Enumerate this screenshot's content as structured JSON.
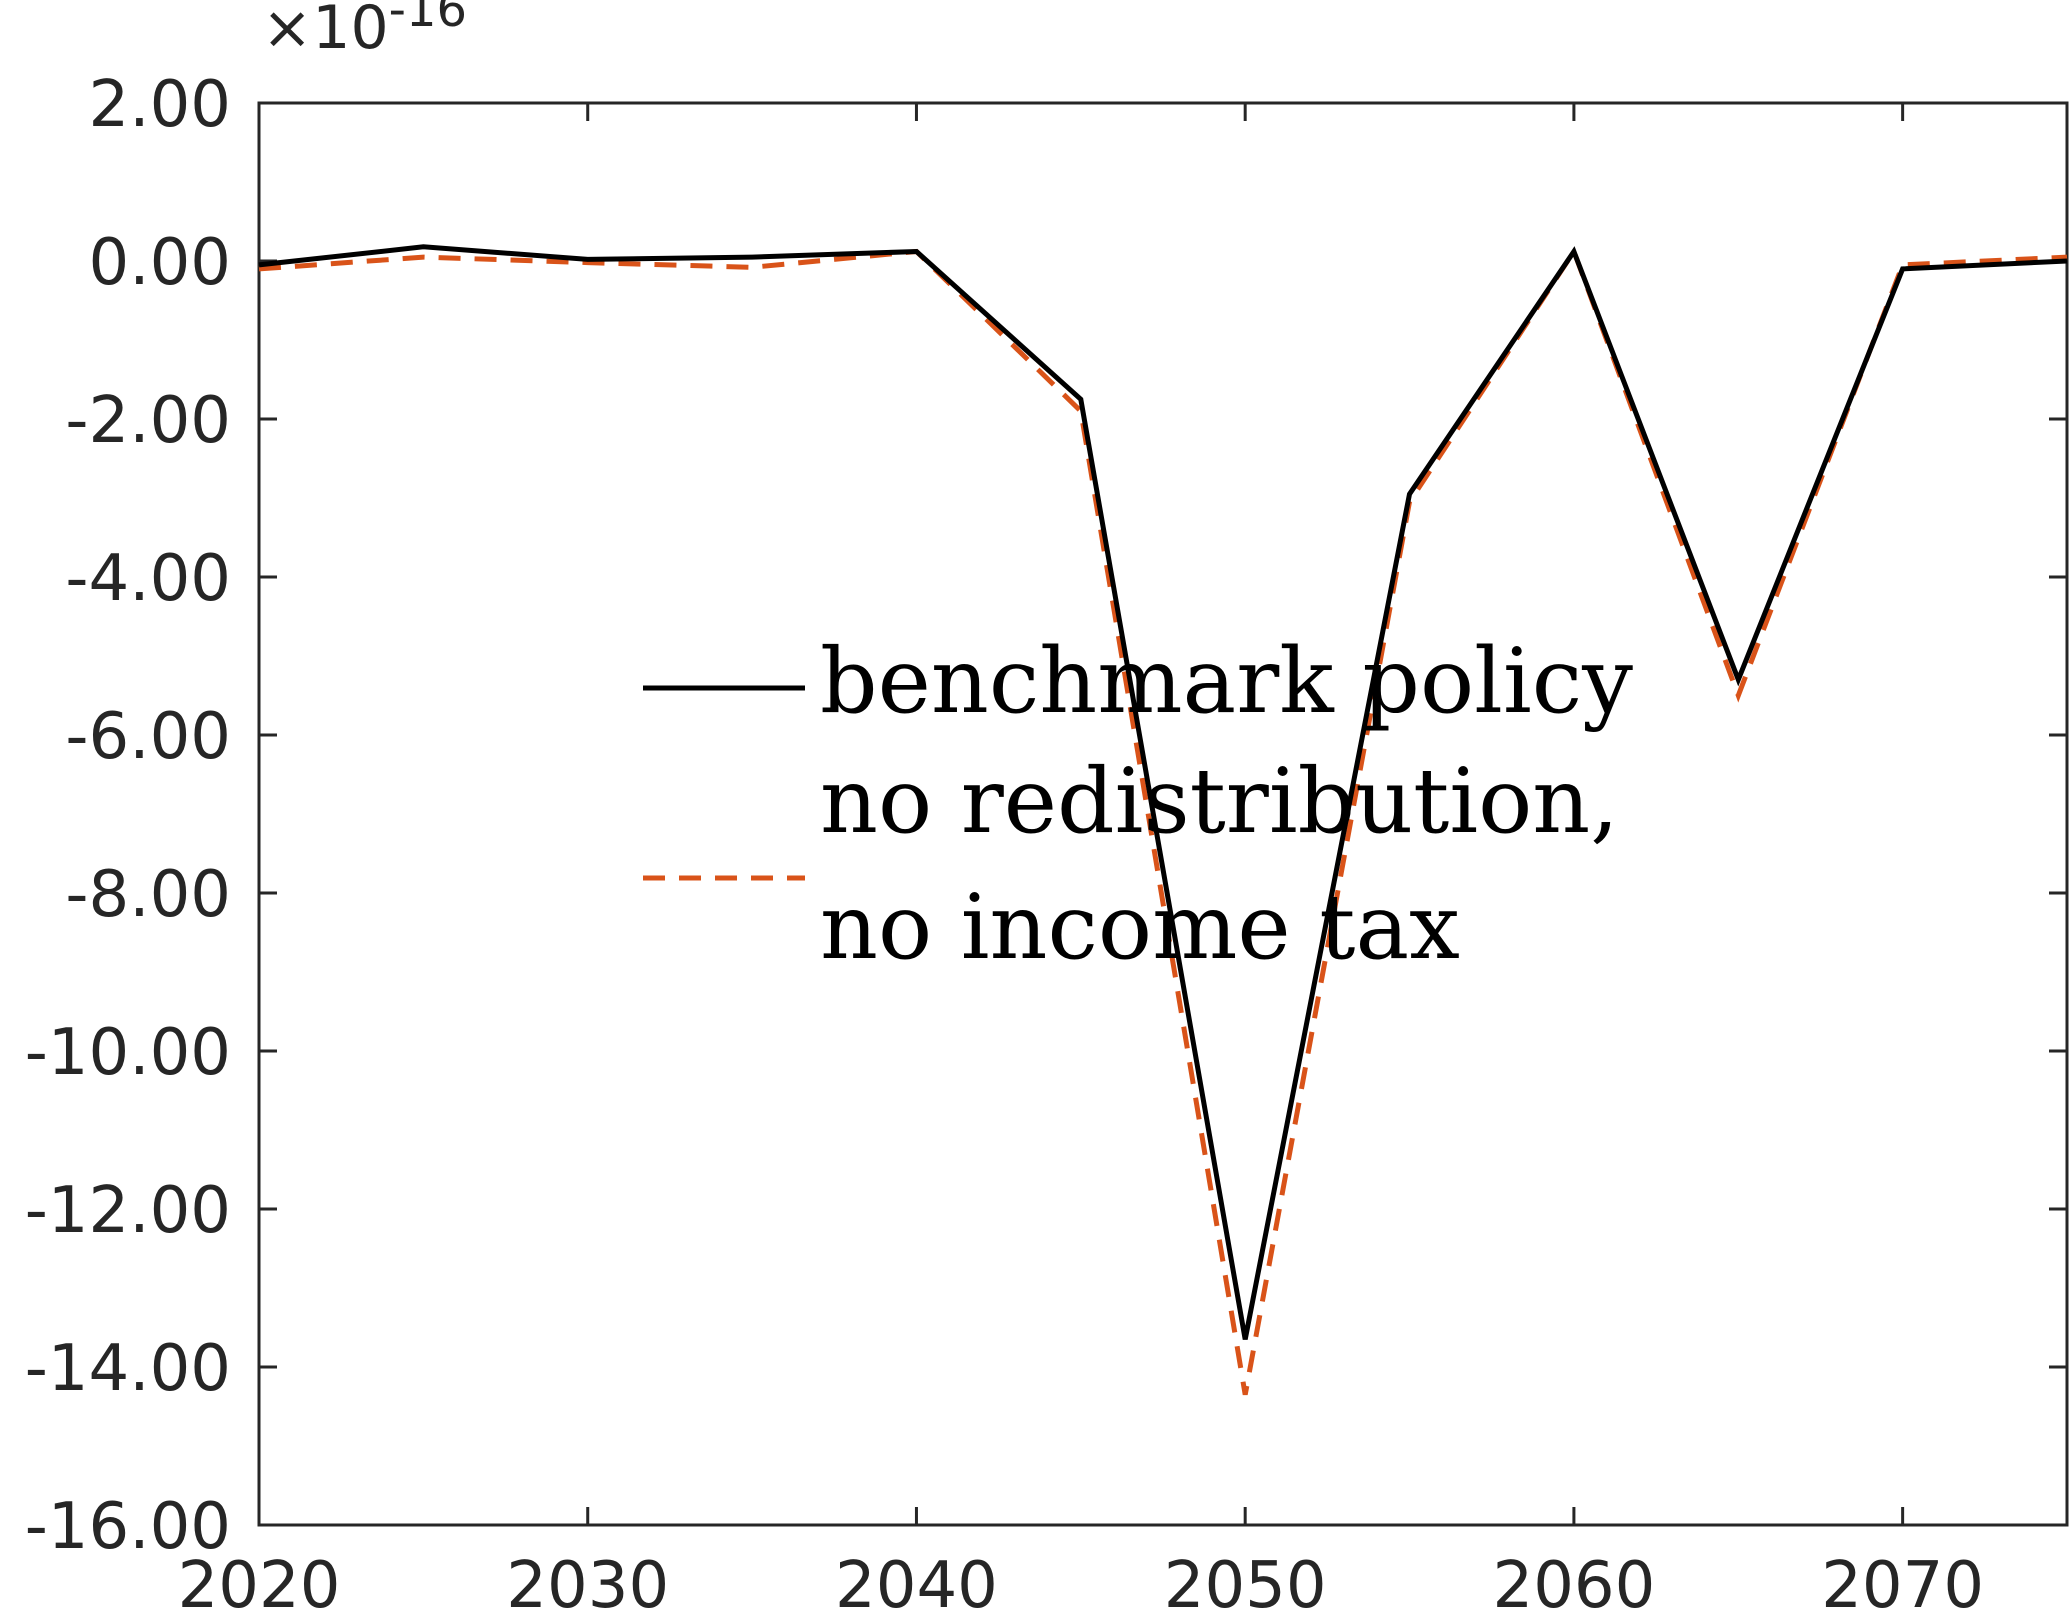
{
  "chart_data": {
    "type": "line",
    "title": "",
    "xlabel": "",
    "ylabel": "",
    "y_exponent_label": {
      "base": "×10",
      "exponent": "-16"
    },
    "xlim": [
      2020,
      2075
    ],
    "ylim": [
      -16,
      2
    ],
    "x_ticks": [
      2020,
      2030,
      2040,
      2050,
      2060,
      2070
    ],
    "x_tick_labels": [
      "2020",
      "2030",
      "2040",
      "2050",
      "2060",
      "2070"
    ],
    "y_ticks": [
      2,
      0,
      -2,
      -4,
      -6,
      -8,
      -10,
      -12,
      -14,
      -16
    ],
    "y_tick_labels": [
      "2.00",
      "0.00",
      "-2.00",
      "-4.00",
      "-6.00",
      "-8.00",
      "-10.00",
      "-12.00",
      "-14.00",
      "-16.00"
    ],
    "grid": false,
    "legend_position": "center",
    "x": [
      2020,
      2025,
      2030,
      2035,
      2040,
      2045,
      2050,
      2055,
      2060,
      2065,
      2070,
      2075
    ],
    "series": [
      {
        "name": "benchmark policy",
        "color": "#000000",
        "style": "solid",
        "values": [
          -0.05,
          0.18,
          0.02,
          0.05,
          0.12,
          -1.75,
          -13.65,
          -2.95,
          0.12,
          -5.3,
          -0.1,
          0.0
        ]
      },
      {
        "name": "no redistribution, no income tax",
        "legend_lines": [
          "no redistribution,",
          "no income tax"
        ],
        "color": "#D95319",
        "style": "dashed",
        "values": [
          -0.1,
          0.05,
          -0.02,
          -0.08,
          0.12,
          -1.9,
          -14.35,
          -3.05,
          0.12,
          -5.5,
          -0.05,
          0.05
        ]
      }
    ]
  }
}
